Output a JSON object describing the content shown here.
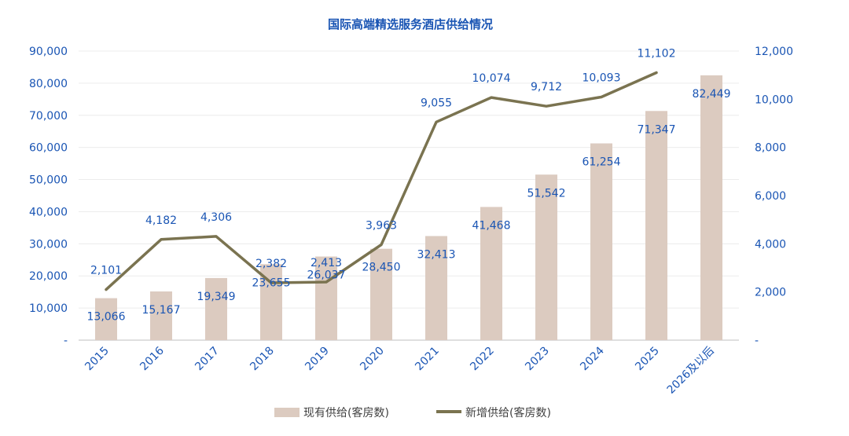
{
  "chart_data": {
    "type": "bar+line",
    "title": "国际高端精选服务酒店供给情况",
    "categories": [
      "2015",
      "2016",
      "2017",
      "2018",
      "2019",
      "2020",
      "2021",
      "2022",
      "2023",
      "2024",
      "2025",
      "2026及以后"
    ],
    "series": [
      {
        "name": "现有供给(客房数)",
        "type": "bar",
        "axis": "left",
        "values": [
          13066,
          15167,
          19349,
          23655,
          26037,
          28450,
          32413,
          41468,
          51542,
          61254,
          71347,
          82449
        ],
        "labels": [
          "13,066",
          "15,167",
          "19,349",
          "23,655",
          "26,037",
          "28,450",
          "32,413",
          "41,468",
          "51,542",
          "61,254",
          "71,347",
          "82,449"
        ],
        "color": "#dccbc0"
      },
      {
        "name": "新增供给(客房数)",
        "type": "line",
        "axis": "right",
        "values": [
          2101,
          4182,
          4306,
          2382,
          2413,
          3963,
          9055,
          10074,
          9712,
          10093,
          11102,
          null
        ],
        "labels": [
          "2,101",
          "4,182",
          "4,306",
          "2,382",
          "2,413",
          "3,963",
          "9,055",
          "10,074",
          "9,712",
          "10,093",
          "11,102",
          ""
        ],
        "color": "#7a7350"
      }
    ],
    "left_axis": {
      "ylim": [
        0,
        90000
      ],
      "ticks": [
        0,
        10000,
        20000,
        30000,
        40000,
        50000,
        60000,
        70000,
        80000,
        90000
      ],
      "tick_labels": [
        "-",
        "10,000",
        "20,000",
        "30,000",
        "40,000",
        "50,000",
        "60,000",
        "70,000",
        "80,000",
        "90,000"
      ]
    },
    "right_axis": {
      "ylim": [
        0,
        12000
      ],
      "ticks": [
        0,
        2000,
        4000,
        6000,
        8000,
        10000,
        12000
      ],
      "tick_labels": [
        "-",
        "2,000",
        "4,000",
        "6,000",
        "8,000",
        "10,000",
        "12,000"
      ]
    },
    "grid": true,
    "legend": "bottom"
  }
}
